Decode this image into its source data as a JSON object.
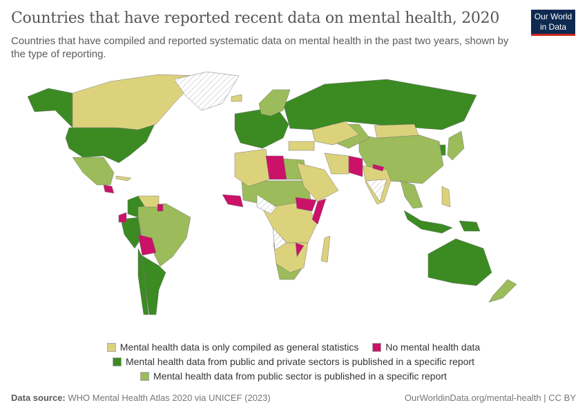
{
  "header": {
    "title": "Countries that have reported recent data on mental health, 2020",
    "subtitle": "Countries that have compiled and reported systematic data on mental health in the past two years, shown by the type of reporting.",
    "logo_line1": "Our World",
    "logo_line2": "in Data"
  },
  "colors": {
    "general": "#ddd27c",
    "none": "#cc1168",
    "public_private": "#3b8b22",
    "public": "#9cbb5a",
    "nodata": "#eeeeee"
  },
  "legend": [
    {
      "label": "Mental health data is only compiled as general statistics",
      "color": "#ddd27c"
    },
    {
      "label": "No mental health data",
      "color": "#cc1168"
    },
    {
      "label": "Mental health data from public and private sectors is published in a specific report",
      "color": "#3b8b22"
    },
    {
      "label": "Mental health data from public sector is published in a specific report",
      "color": "#9cbb5a"
    }
  ],
  "footer": {
    "source_label": "Data source:",
    "source": "WHO Mental Health Atlas 2020 via UNICEF (2023)",
    "url": "OurWorldinData.org/mental-health | CC BY"
  }
}
